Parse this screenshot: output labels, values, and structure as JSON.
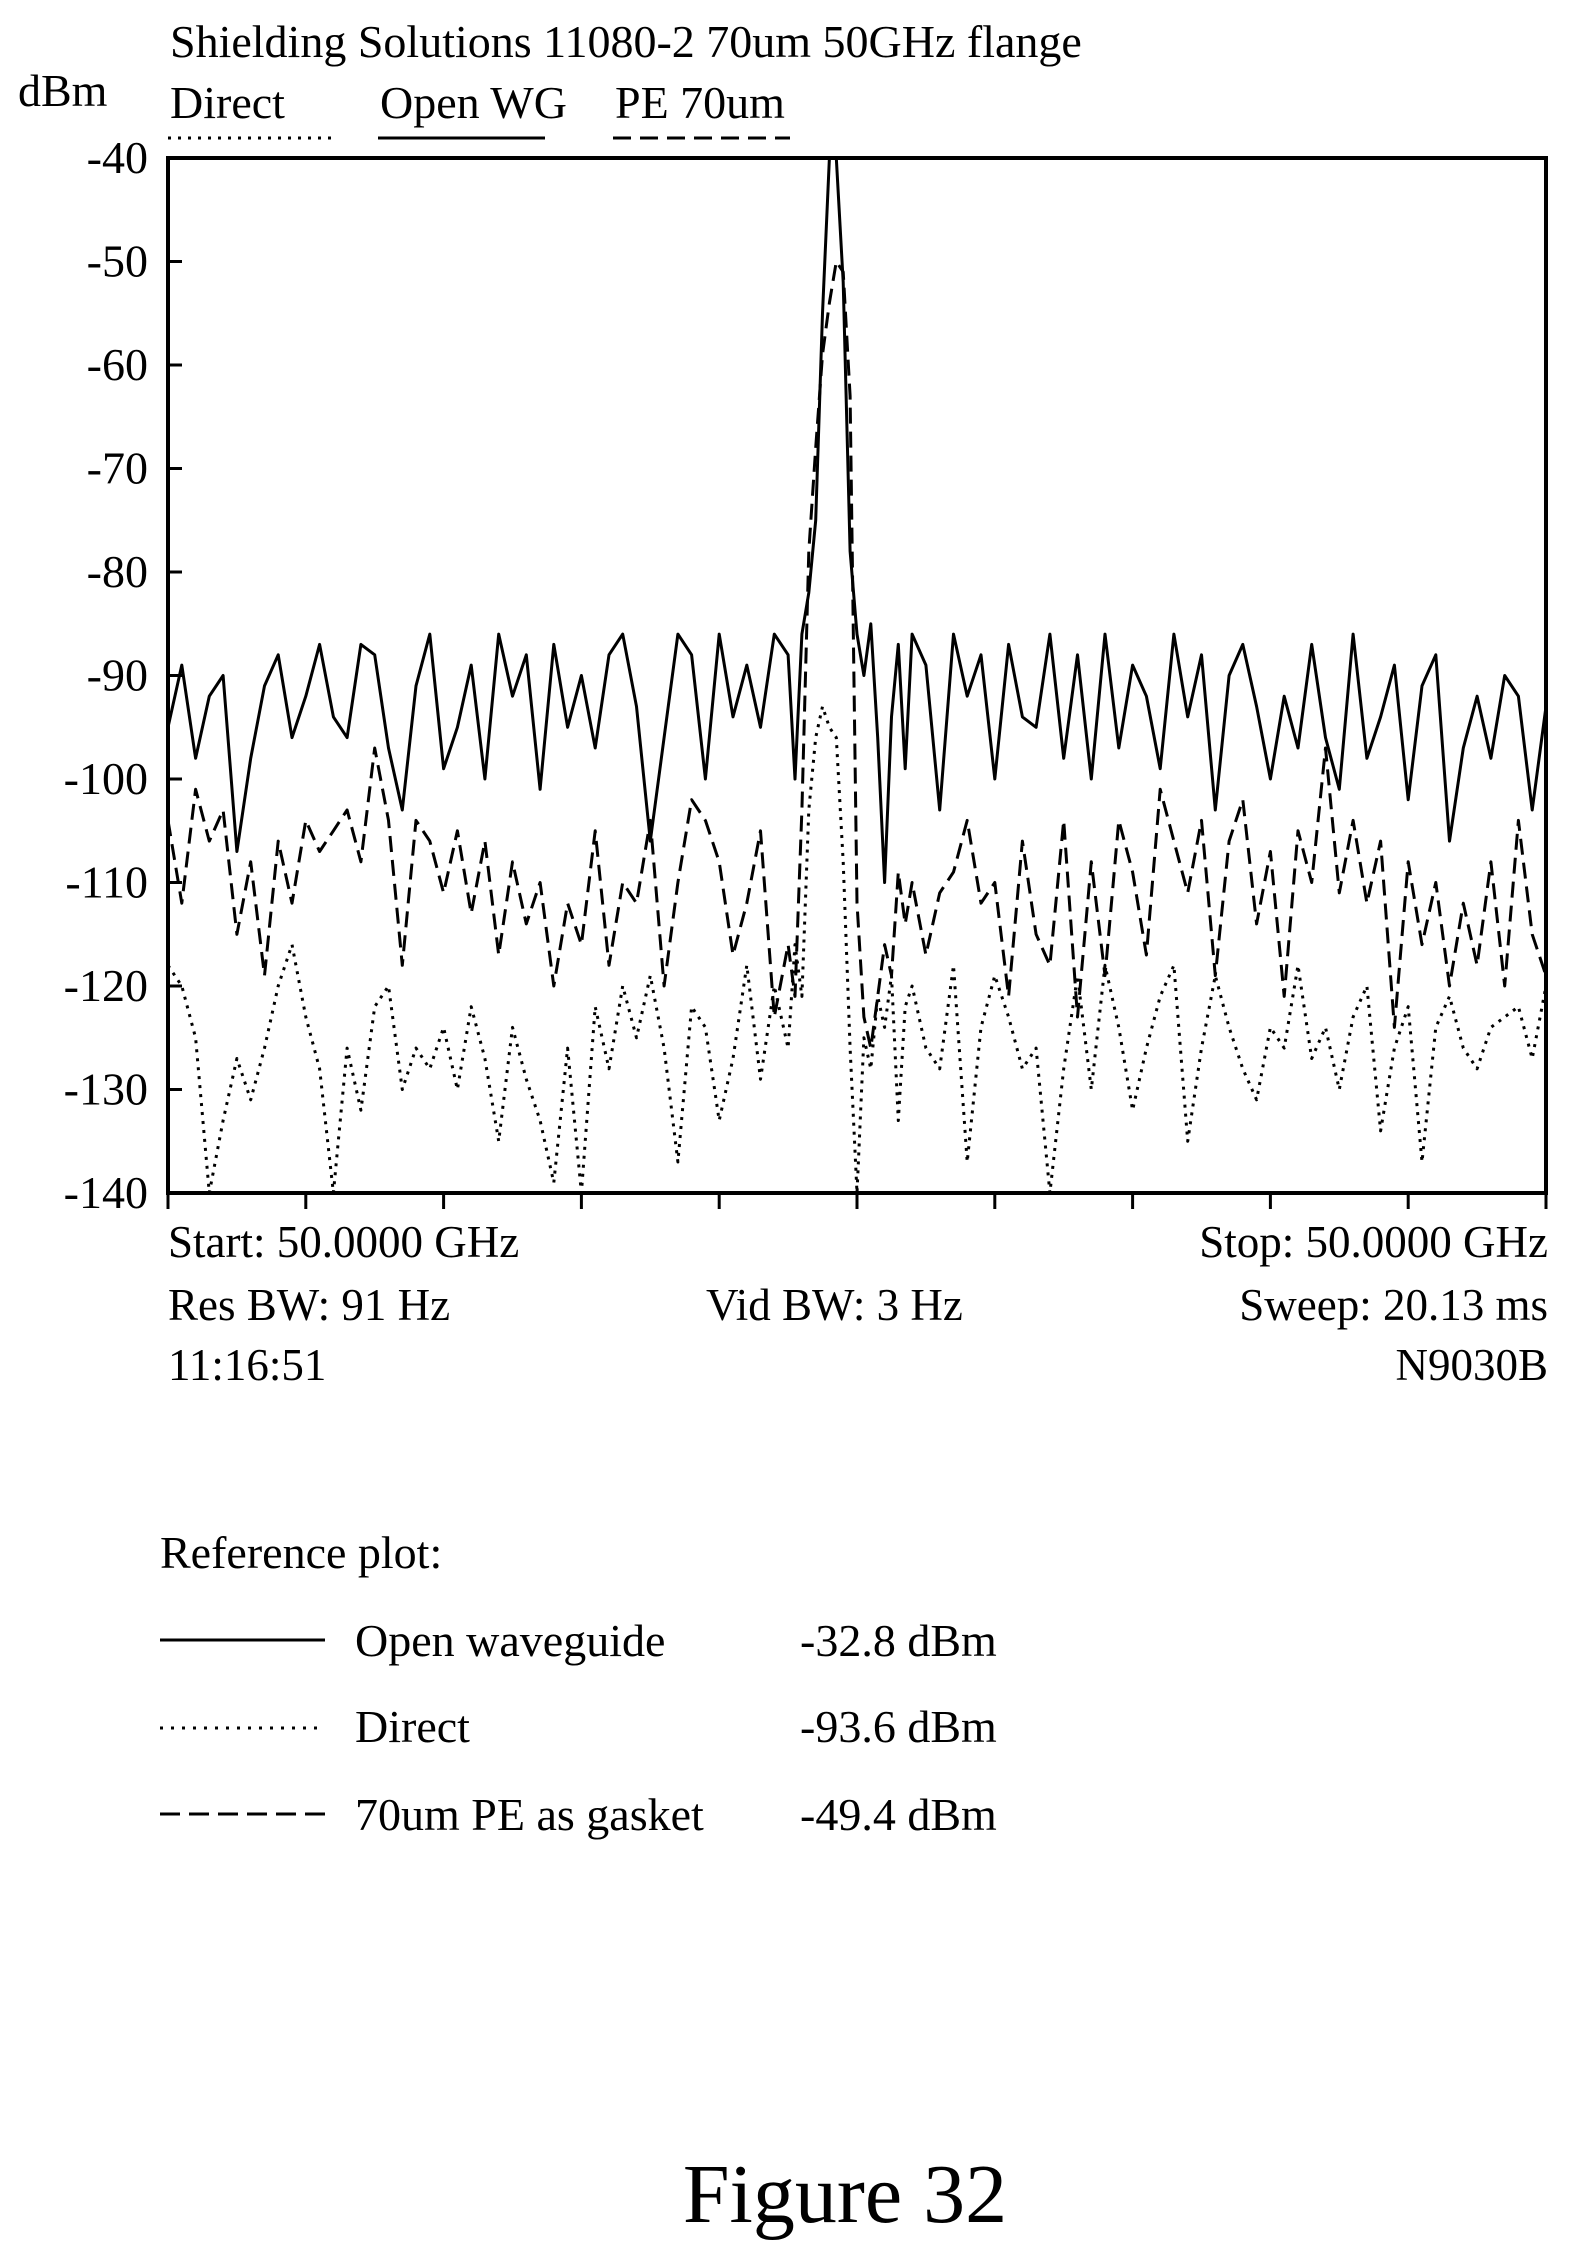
{
  "chart_data": {
    "type": "line",
    "title": "Shielding Solutions 11080-2  70um 50GHz flange",
    "ylabel": "dBm",
    "ylim": [
      -140,
      -40
    ],
    "yticks": [
      "-40",
      "-50",
      "-60",
      "-70",
      "-80",
      "-90",
      "-100",
      "-110",
      "-120",
      "-130",
      "-140"
    ],
    "grid": false,
    "legend_position": "top",
    "legend": [
      {
        "label": "Direct",
        "style": "dotted"
      },
      {
        "label": "Open WG",
        "style": "solid"
      },
      {
        "label": "PE 70um",
        "style": "dashed"
      }
    ],
    "x_range": [
      0,
      10
    ],
    "series": [
      {
        "name": "Open WG",
        "style": "solid",
        "x": [
          0.0,
          0.1,
          0.2,
          0.3,
          0.4,
          0.5,
          0.6,
          0.7,
          0.8,
          0.9,
          1.0,
          1.1,
          1.2,
          1.3,
          1.4,
          1.5,
          1.6,
          1.7,
          1.8,
          1.9,
          2.0,
          2.1,
          2.2,
          2.3,
          2.4,
          2.5,
          2.6,
          2.7,
          2.8,
          2.9,
          3.0,
          3.1,
          3.2,
          3.3,
          3.4,
          3.5,
          3.6,
          3.7,
          3.8,
          3.9,
          4.0,
          4.1,
          4.2,
          4.3,
          4.4,
          4.5,
          4.55,
          4.6,
          4.65,
          4.7,
          4.75,
          4.8,
          4.85,
          4.9,
          4.95,
          5.0,
          5.05,
          5.1,
          5.15,
          5.2,
          5.25,
          5.3,
          5.35,
          5.4,
          5.5,
          5.6,
          5.7,
          5.8,
          5.9,
          6.0,
          6.1,
          6.2,
          6.3,
          6.4,
          6.5,
          6.6,
          6.7,
          6.8,
          6.9,
          7.0,
          7.1,
          7.2,
          7.3,
          7.4,
          7.5,
          7.6,
          7.7,
          7.8,
          7.9,
          8.0,
          8.1,
          8.2,
          8.3,
          8.4,
          8.5,
          8.6,
          8.7,
          8.8,
          8.9,
          9.0,
          9.1,
          9.2,
          9.3,
          9.4,
          9.5,
          9.6,
          9.7,
          9.8,
          9.9,
          10.0
        ],
        "values": [
          -95,
          -89,
          -98,
          -92,
          -90,
          -107,
          -98,
          -91,
          -88,
          -96,
          -92,
          -87,
          -94,
          -96,
          -87,
          -88,
          -97,
          -103,
          -91,
          -86,
          -99,
          -95,
          -89,
          -100,
          -86,
          -92,
          -88,
          -101,
          -87,
          -95,
          -90,
          -97,
          -88,
          -86,
          -93,
          -106,
          -96,
          -86,
          -88,
          -100,
          -86,
          -94,
          -89,
          -95,
          -86,
          -88,
          -100,
          -86,
          -82,
          -75,
          -55,
          -40,
          -40,
          -52,
          -78,
          -86,
          -90,
          -85,
          -96,
          -110,
          -94,
          -87,
          -99,
          -86,
          -89,
          -103,
          -86,
          -92,
          -88,
          -100,
          -87,
          -94,
          -95,
          -86,
          -98,
          -88,
          -100,
          -86,
          -97,
          -89,
          -92,
          -99,
          -86,
          -94,
          -88,
          -103,
          -90,
          -87,
          -93,
          -100,
          -92,
          -97,
          -87,
          -96,
          -101,
          -86,
          -98,
          -94,
          -89,
          -102,
          -91,
          -88,
          -106,
          -97,
          -92,
          -98,
          -90,
          -92,
          -103,
          -93
        ],
        "peak": {
          "x": 5.0,
          "y": -40
        }
      },
      {
        "name": "PE 70um",
        "style": "dashed",
        "x": [
          0.0,
          0.1,
          0.2,
          0.3,
          0.4,
          0.5,
          0.6,
          0.7,
          0.8,
          0.9,
          1.0,
          1.1,
          1.2,
          1.3,
          1.4,
          1.5,
          1.6,
          1.7,
          1.8,
          1.9,
          2.0,
          2.1,
          2.2,
          2.3,
          2.4,
          2.5,
          2.6,
          2.7,
          2.8,
          2.9,
          3.0,
          3.1,
          3.2,
          3.3,
          3.4,
          3.5,
          3.6,
          3.7,
          3.8,
          3.9,
          4.0,
          4.1,
          4.2,
          4.3,
          4.4,
          4.5,
          4.55,
          4.6,
          4.65,
          4.7,
          4.75,
          4.8,
          4.85,
          4.9,
          4.95,
          5.0,
          5.05,
          5.1,
          5.15,
          5.2,
          5.25,
          5.3,
          5.35,
          5.4,
          5.5,
          5.6,
          5.7,
          5.8,
          5.9,
          6.0,
          6.1,
          6.2,
          6.3,
          6.4,
          6.5,
          6.6,
          6.7,
          6.8,
          6.9,
          7.0,
          7.1,
          7.2,
          7.3,
          7.4,
          7.5,
          7.6,
          7.7,
          7.8,
          7.9,
          8.0,
          8.1,
          8.2,
          8.3,
          8.4,
          8.5,
          8.6,
          8.7,
          8.8,
          8.9,
          9.0,
          9.1,
          9.2,
          9.3,
          9.4,
          9.5,
          9.6,
          9.7,
          9.8,
          9.9,
          10.0
        ],
        "values": [
          -104,
          -112,
          -101,
          -106,
          -103,
          -115,
          -108,
          -119,
          -106,
          -112,
          -104,
          -107,
          -105,
          -103,
          -108,
          -97,
          -104,
          -118,
          -104,
          -106,
          -111,
          -105,
          -113,
          -106,
          -117,
          -108,
          -114,
          -110,
          -120,
          -112,
          -116,
          -105,
          -118,
          -110,
          -112,
          -104,
          -120,
          -110,
          -102,
          -104,
          -108,
          -117,
          -112,
          -105,
          -123,
          -116,
          -121,
          -103,
          -78,
          -68,
          -59,
          -54,
          -50,
          -51,
          -63,
          -112,
          -123,
          -126,
          -121,
          -116,
          -119,
          -109,
          -114,
          -110,
          -117,
          -111,
          -109,
          -104,
          -112,
          -110,
          -121,
          -106,
          -115,
          -118,
          -104,
          -123,
          -108,
          -119,
          -104,
          -109,
          -117,
          -101,
          -106,
          -111,
          -104,
          -119,
          -106,
          -102,
          -114,
          -107,
          -121,
          -105,
          -110,
          -97,
          -111,
          -104,
          -112,
          -106,
          -124,
          -108,
          -116,
          -110,
          -120,
          -112,
          -118,
          -108,
          -120,
          -104,
          -115,
          -119
        ],
        "peak": {
          "x": 5.0,
          "y": -50
        }
      },
      {
        "name": "Direct",
        "style": "dotted",
        "x": [
          0.0,
          0.1,
          0.2,
          0.3,
          0.4,
          0.5,
          0.6,
          0.7,
          0.8,
          0.9,
          1.0,
          1.1,
          1.2,
          1.3,
          1.4,
          1.5,
          1.6,
          1.7,
          1.8,
          1.9,
          2.0,
          2.1,
          2.2,
          2.3,
          2.4,
          2.5,
          2.6,
          2.7,
          2.8,
          2.9,
          3.0,
          3.1,
          3.2,
          3.3,
          3.4,
          3.5,
          3.6,
          3.7,
          3.8,
          3.9,
          4.0,
          4.1,
          4.2,
          4.3,
          4.4,
          4.5,
          4.55,
          4.6,
          4.65,
          4.7,
          4.75,
          4.8,
          4.85,
          4.9,
          4.95,
          5.0,
          5.05,
          5.1,
          5.15,
          5.2,
          5.25,
          5.3,
          5.35,
          5.4,
          5.5,
          5.6,
          5.7,
          5.8,
          5.9,
          6.0,
          6.1,
          6.2,
          6.3,
          6.4,
          6.5,
          6.6,
          6.7,
          6.8,
          6.9,
          7.0,
          7.1,
          7.2,
          7.3,
          7.4,
          7.5,
          7.6,
          7.7,
          7.8,
          7.9,
          8.0,
          8.1,
          8.2,
          8.3,
          8.4,
          8.5,
          8.6,
          8.7,
          8.8,
          8.9,
          9.0,
          9.1,
          9.2,
          9.3,
          9.4,
          9.5,
          9.6,
          9.7,
          9.8,
          9.9,
          10.0
        ],
        "values": [
          -118,
          -120,
          -125,
          -140,
          -133,
          -127,
          -131,
          -126,
          -120,
          -116,
          -123,
          -128,
          -140,
          -126,
          -132,
          -122,
          -120,
          -130,
          -126,
          -128,
          -124,
          -130,
          -122,
          -127,
          -135,
          -124,
          -129,
          -133,
          -139,
          -126,
          -140,
          -122,
          -128,
          -120,
          -125,
          -119,
          -126,
          -137,
          -122,
          -124,
          -133,
          -127,
          -118,
          -129,
          -120,
          -126,
          -116,
          -121,
          -103,
          -96,
          -93,
          -95,
          -96,
          -108,
          -126,
          -140,
          -125,
          -128,
          -121,
          -124,
          -119,
          -133,
          -122,
          -120,
          -126,
          -128,
          -118,
          -137,
          -124,
          -119,
          -123,
          -128,
          -126,
          -140,
          -128,
          -119,
          -130,
          -118,
          -124,
          -132,
          -126,
          -121,
          -118,
          -135,
          -126,
          -119,
          -124,
          -128,
          -131,
          -124,
          -126,
          -118,
          -127,
          -124,
          -130,
          -123,
          -120,
          -134,
          -126,
          -122,
          -137,
          -124,
          -121,
          -126,
          -128,
          -124,
          -123,
          -122,
          -127,
          -120
        ],
        "peak": {
          "x": 5.0,
          "y": -93
        }
      }
    ]
  },
  "analyzer": {
    "start": "Start: 50.0000 GHz",
    "stop": "Stop: 50.0000 GHz",
    "res_bw": "Res BW: 91 Hz",
    "vid_bw": "Vid BW: 3 Hz",
    "sweep": "Sweep: 20.13 ms",
    "time": "11:16:51",
    "model": "N9030B"
  },
  "reference": {
    "heading": "Reference plot:",
    "rows": [
      {
        "style": "solid",
        "label": "Open waveguide",
        "value": "-32.8 dBm"
      },
      {
        "style": "dotted",
        "label": "Direct",
        "value": "-93.6 dBm"
      },
      {
        "style": "dashed",
        "label": "70um PE as gasket",
        "value": "-49.4 dBm"
      }
    ]
  },
  "figure_label": "Figure  32"
}
